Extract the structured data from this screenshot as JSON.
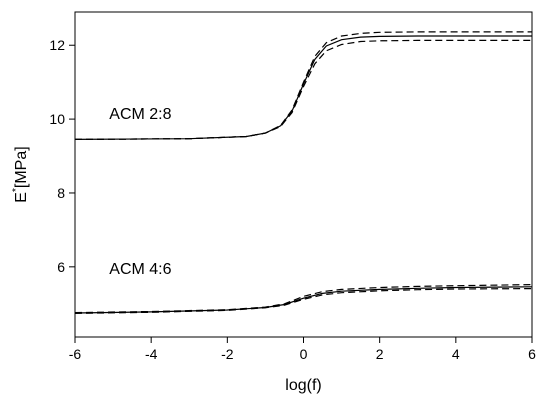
{
  "chart_data": {
    "type": "line",
    "xlabel": "log(f)",
    "ylabel_base": "E",
    "ylabel_sup": "*",
    "ylabel_unit": "[MPa]",
    "xlim": [
      -6,
      6
    ],
    "ylim": [
      4.1,
      12.9
    ],
    "xticks": [
      -6,
      -4,
      -2,
      0,
      2,
      4,
      6
    ],
    "yticks": [
      6,
      8,
      10,
      12
    ],
    "grid": false,
    "legend": "none",
    "line_color": "#000000",
    "annotations": [
      {
        "text": "ACM 2:8",
        "x": -5.1,
        "y": 10.0
      },
      {
        "text": "ACM 4:6",
        "x": -5.1,
        "y": 5.8
      }
    ],
    "groups": [
      {
        "label": "ACM 2:8",
        "series": [
          {
            "style": "solid",
            "x": [
              -6,
              -3,
              -1.5,
              -1,
              -0.6,
              -0.3,
              0,
              0.3,
              0.6,
              1,
              1.5,
              2,
              3,
              4,
              6
            ],
            "y": [
              9.45,
              9.47,
              9.53,
              9.62,
              9.82,
              10.22,
              10.95,
              11.62,
              11.98,
              12.15,
              12.22,
              12.24,
              12.25,
              12.25,
              12.25
            ]
          },
          {
            "style": "dashed",
            "x": [
              -6,
              -3,
              -1.5,
              -1,
              -0.6,
              -0.3,
              0,
              0.3,
              0.6,
              1,
              1.5,
              2,
              3,
              4,
              6
            ],
            "y": [
              9.45,
              9.47,
              9.53,
              9.62,
              9.83,
              10.25,
              11.0,
              11.7,
              12.07,
              12.25,
              12.32,
              12.35,
              12.36,
              12.36,
              12.36
            ]
          },
          {
            "style": "dashed",
            "x": [
              -6,
              -3,
              -1.5,
              -1,
              -0.6,
              -0.3,
              0,
              0.3,
              0.6,
              1,
              1.5,
              2,
              3,
              4,
              6
            ],
            "y": [
              9.45,
              9.47,
              9.53,
              9.62,
              9.8,
              10.18,
              10.88,
              11.5,
              11.85,
              12.02,
              12.1,
              12.12,
              12.13,
              12.13,
              12.13
            ]
          }
        ]
      },
      {
        "label": "ACM 4:6",
        "series": [
          {
            "style": "solid",
            "x": [
              -6,
              -4,
              -2,
              -1,
              -0.5,
              0,
              0.5,
              1,
              2,
              3,
              4,
              6
            ],
            "y": [
              4.75,
              4.78,
              4.83,
              4.9,
              4.98,
              5.15,
              5.28,
              5.34,
              5.39,
              5.42,
              5.44,
              5.46
            ]
          },
          {
            "style": "dashed",
            "x": [
              -6,
              -4,
              -2,
              -1,
              -0.5,
              0,
              0.5,
              1,
              2,
              3,
              4,
              6
            ],
            "y": [
              4.76,
              4.79,
              4.84,
              4.91,
              5.0,
              5.2,
              5.33,
              5.39,
              5.44,
              5.47,
              5.49,
              5.52
            ]
          },
          {
            "style": "dashed",
            "x": [
              -6,
              -4,
              -2,
              -1,
              -0.5,
              0,
              0.5,
              1,
              2,
              3,
              4,
              6
            ],
            "y": [
              4.74,
              4.77,
              4.82,
              4.89,
              4.96,
              5.12,
              5.24,
              5.3,
              5.35,
              5.38,
              5.4,
              5.41
            ]
          }
        ]
      }
    ]
  }
}
